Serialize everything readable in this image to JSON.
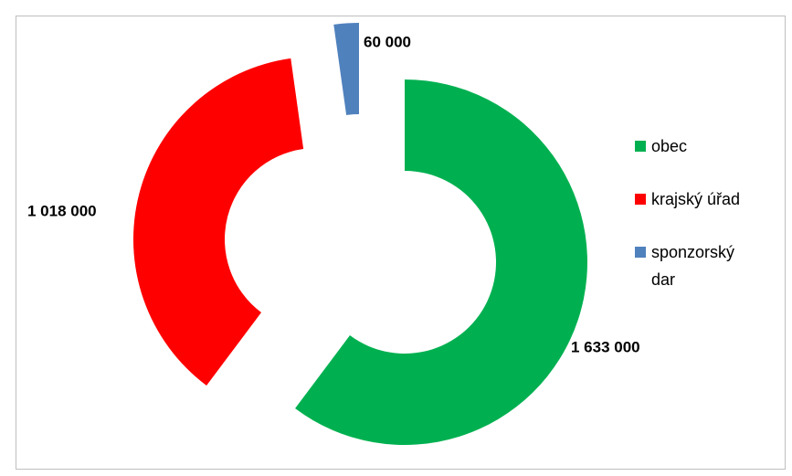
{
  "chart_data": {
    "type": "doughnut",
    "categories": [
      "obec",
      "krajský úřad",
      "sponzorský dar"
    ],
    "values": [
      1633000,
      1018000,
      60000
    ],
    "value_labels": [
      "1 633 000",
      "1 018 000",
      "60 000"
    ],
    "colors": [
      "#00b050",
      "#ff0000",
      "#4f81bd"
    ],
    "legend": "right"
  }
}
